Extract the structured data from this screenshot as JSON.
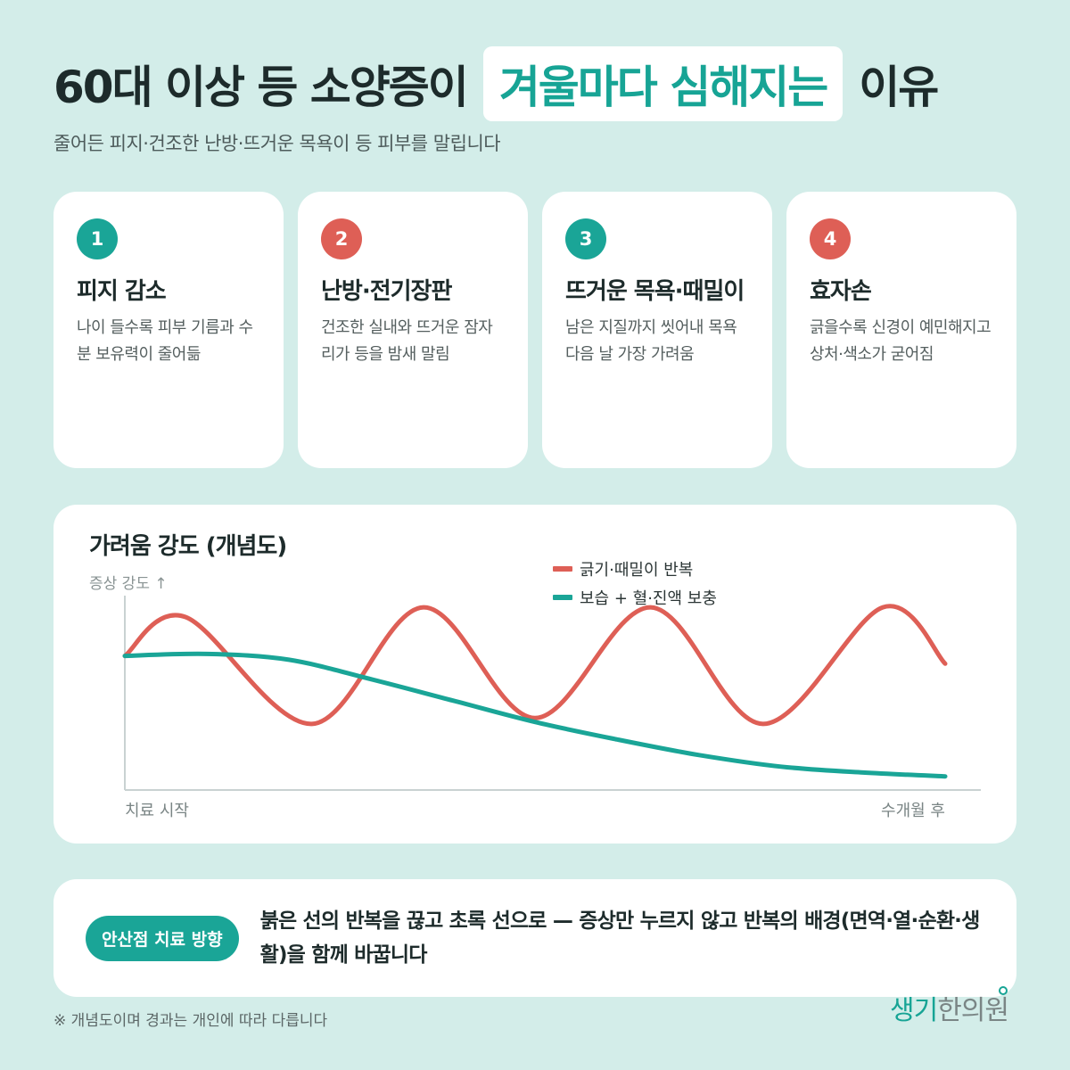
{
  "header": {
    "title_before": "60대 이상 등 소양증이",
    "title_highlight": "겨울마다 심해지는",
    "title_after": "이유",
    "subtitle": "줄어든 피지·건조한 난방·뜨거운 목욕이 등 피부를 말립니다"
  },
  "cards": [
    {
      "num": "1",
      "title": "피지 감소",
      "desc": "나이 들수록 피부 기름과 수분 보유력이 줄어듦",
      "color": "#1aa597"
    },
    {
      "num": "2",
      "title": "난방·전기장판",
      "desc": "건조한 실내와 뜨거운 잠자리가 등을 밤새 말림",
      "color": "#de5f56"
    },
    {
      "num": "3",
      "title": "뜨거운 목욕·때밀이",
      "desc": "남은 지질까지 씻어내 목욕 다음 날 가장 가려움",
      "color": "#1aa597"
    },
    {
      "num": "4",
      "title": "효자손",
      "desc": "긁을수록 신경이 예민해지고 상처·색소가 굳어짐",
      "color": "#de5f56"
    }
  ],
  "chart_data": {
    "type": "line",
    "title": "가려움 강도 (개념도)",
    "ylabel": "증상 강도 ↑",
    "x_start_label": "치료 시작",
    "x_end_label": "수개월 후",
    "xlim": [
      0,
      1
    ],
    "ylim": [
      0,
      1
    ],
    "grid": false,
    "legend_position": "top-right",
    "series": [
      {
        "name": "긁기·때밀이 반복",
        "color": "#de5f56",
        "points": [
          [
            0,
            0.69
          ],
          [
            0.074,
            0.89
          ],
          [
            0.228,
            0.34
          ],
          [
            0.364,
            0.94
          ],
          [
            0.5,
            0.37
          ],
          [
            0.641,
            0.94
          ],
          [
            0.778,
            0.34
          ],
          [
            0.924,
            0.94
          ],
          [
            1.0,
            0.65
          ]
        ]
      },
      {
        "name": "보습 + 혈·진액 보충",
        "color": "#1aa597",
        "points": [
          [
            0,
            0.69
          ],
          [
            0.1,
            0.7
          ],
          [
            0.2,
            0.67
          ],
          [
            0.3,
            0.57
          ],
          [
            0.4,
            0.46
          ],
          [
            0.5,
            0.35
          ],
          [
            0.6,
            0.26
          ],
          [
            0.7,
            0.18
          ],
          [
            0.8,
            0.12
          ],
          [
            0.9,
            0.09
          ],
          [
            1.0,
            0.07
          ]
        ]
      }
    ]
  },
  "bottom": {
    "pill": "안산점 치료 방향",
    "text": "붉은 선의 반복을 끊고 초록 선으로 — 증상만 누르지 않고 반복의 배경(면역·열·순환·생활)을 함께 바꿉니다"
  },
  "footnote": "※ 개념도이며 경과는 개인에 따라 다릅니다",
  "brand": {
    "accent": "생기",
    "rest": "한의원"
  }
}
